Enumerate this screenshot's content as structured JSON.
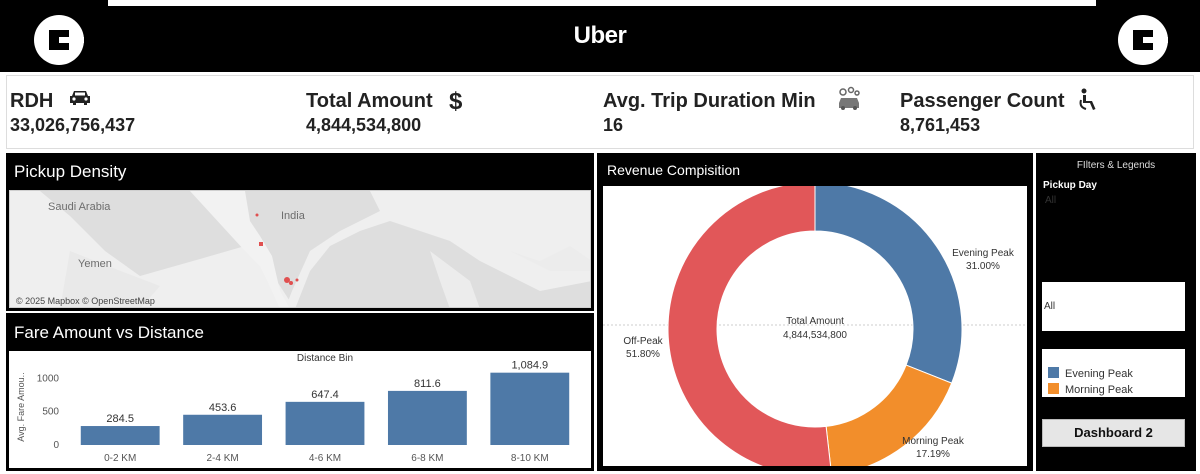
{
  "header": {
    "brand": "Uber"
  },
  "kpis": [
    {
      "title": "RDH",
      "value": "33,026,756,437",
      "icon": "car-icon"
    },
    {
      "title": "Total Amount",
      "value": "4,844,534,800",
      "icon": "dollar-icon"
    },
    {
      "title": "Avg. Trip Duration Min",
      "value": "16",
      "icon": "car-wash-icon"
    },
    {
      "title": "Passenger Count",
      "value": "8,761,453",
      "icon": "wheelchair-icon"
    }
  ],
  "pickup": {
    "title": "Pickup Density",
    "labels": {
      "saudi": "Saudi Arabia",
      "india": "India",
      "yemen": "Yemen"
    },
    "attribution": "© 2025 Mapbox © OpenStreetMap"
  },
  "fare_panel": {
    "title": "Fare Amount vs Distance"
  },
  "revenue_panel": {
    "title": "Revenue Compisition"
  },
  "sidebar": {
    "title": "FIlters & Legends",
    "pickup_day_label": "Pickup Day",
    "pickup_day_value": "All",
    "filter_value": "All",
    "legend": [
      {
        "label": "Evening Peak",
        "color": "#4e79a7"
      },
      {
        "label": "Morning Peak",
        "color": "#f28e2b"
      }
    ],
    "button": "Dashboard 2"
  },
  "chart_data": [
    {
      "type": "bar",
      "title": "Distance Bin",
      "ylabel": "Avg. Fare Amou..",
      "categories": [
        "0-2 KM",
        "2-4 KM",
        "4-6 KM",
        "6-8 KM",
        "8-10 KM"
      ],
      "values": [
        284.5,
        453.6,
        647.4,
        811.6,
        1084.9
      ],
      "value_labels": [
        "284.5",
        "453.6",
        "647.4",
        "811.6",
        "1,084.9"
      ],
      "yticks": [
        0,
        500,
        1000
      ],
      "ylim": [
        0,
        1200
      ],
      "color": "#4e79a7"
    },
    {
      "type": "pie",
      "center_label": "Total Amount",
      "center_value": "4,844,534,800",
      "slices": [
        {
          "name": "Evening Peak",
          "value": 31.0,
          "label": "31.00%",
          "color": "#4e79a7"
        },
        {
          "name": "Morning Peak",
          "value": 17.19,
          "label": "17.19%",
          "color": "#f28e2b"
        },
        {
          "name": "Off-Peak",
          "value": 51.8,
          "label": "51.80%",
          "color": "#e15759"
        }
      ]
    }
  ]
}
